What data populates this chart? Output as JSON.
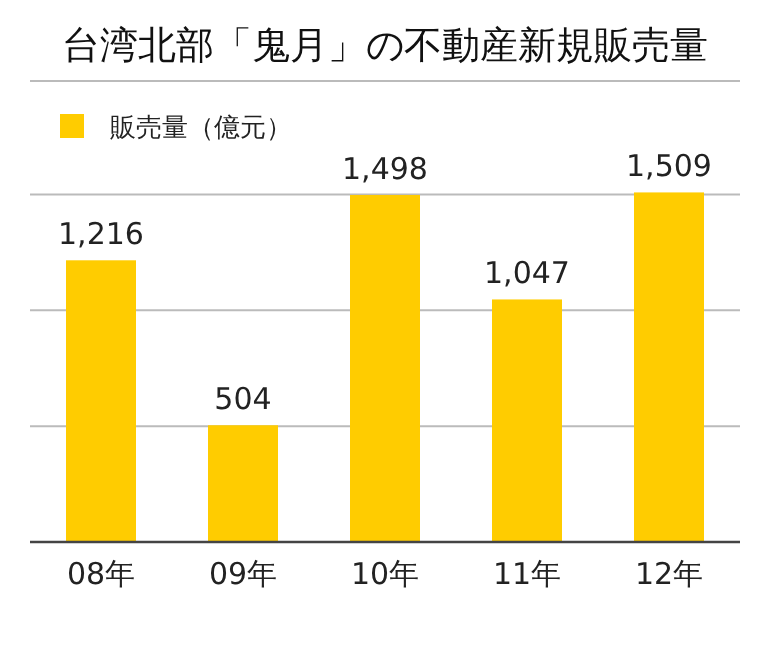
{
  "chart_data": {
    "type": "bar",
    "title": "台湾北部「鬼月」の不動産新規販売量",
    "categories": [
      "08年",
      "09年",
      "10年",
      "11年",
      "12年"
    ],
    "series": [
      {
        "name": "販売量（億元）",
        "color": "#ffcc00",
        "values": [
          1216,
          504,
          1498,
          1047,
          1509
        ],
        "value_labels": [
          "1,216",
          "504",
          "1,498",
          "1,047",
          "1,509"
        ]
      }
    ],
    "ref_lines": [
      {
        "axis": "y",
        "value": 500,
        "color": "#bbbbbb"
      },
      {
        "axis": "y",
        "value": 1000,
        "color": "#bbbbbb"
      },
      {
        "axis": "y",
        "value": 1500,
        "color": "#bbbbbb"
      }
    ],
    "legend": "top left",
    "tick_labels": "x"
  }
}
